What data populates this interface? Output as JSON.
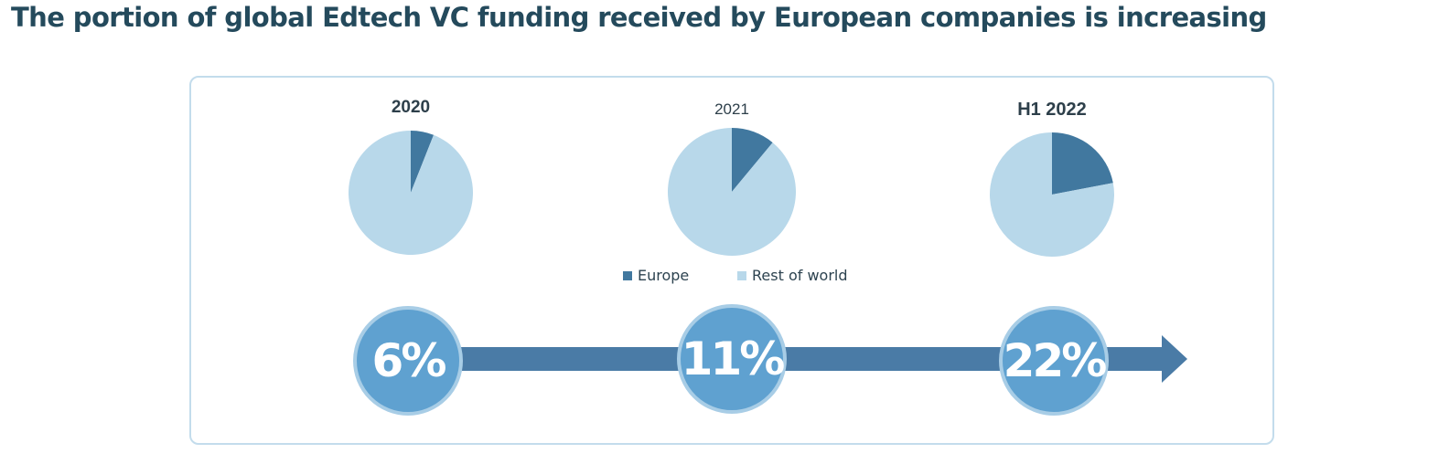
{
  "headline": "The portion of global Edtech VC funding received by European companies is increasing",
  "colors": {
    "europe": "#41789f",
    "rest_of_world": "#b8d8ea",
    "arrow": "#4a7ba6",
    "bubble": "#5fa1d0"
  },
  "legend": {
    "europe": "Europe",
    "rest_of_world": "Rest of world"
  },
  "chart_data": {
    "type": "pie",
    "charts": [
      {
        "title": "2020",
        "slices": [
          {
            "label": "Europe",
            "value": 6
          },
          {
            "label": "Rest of world",
            "value": 94
          }
        ]
      },
      {
        "title": "2021",
        "slices": [
          {
            "label": "Europe",
            "value": 11
          },
          {
            "label": "Rest of world",
            "value": 89
          }
        ]
      },
      {
        "title": "H1 2022",
        "slices": [
          {
            "label": "Europe",
            "value": 22
          },
          {
            "label": "Rest of world",
            "value": 78
          }
        ]
      }
    ],
    "legend_position": "center"
  },
  "timeline": {
    "values": [
      "6%",
      "11%",
      "22%"
    ]
  }
}
